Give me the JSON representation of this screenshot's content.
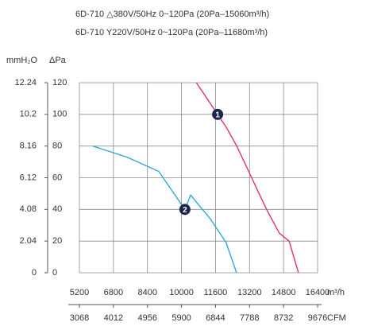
{
  "chart_data": {
    "type": "line",
    "subtitle_lines": [
      "6D-710  △380V/50Hz  0~120Pa  (20Pa–15060m³/h)",
      "6D-710  Y220V/50Hz  0~120Pa  (20Pa–11680m³/h)"
    ],
    "y_label": "ΔPa",
    "y2_label": "mmH₂O",
    "x_label": "m³/h",
    "x2_label": "CFM",
    "xlim": [
      5200,
      16400
    ],
    "xticks": [
      5200,
      6800,
      8400,
      10000,
      11600,
      13200,
      14800,
      16400
    ],
    "x2lim": [
      3068,
      9676
    ],
    "x2ticks": [
      3068,
      4012,
      4956,
      5900,
      6844,
      7788,
      8732,
      9676
    ],
    "ylim": [
      0,
      120
    ],
    "yticks": [
      0,
      20,
      40,
      60,
      80,
      100,
      120
    ],
    "y2lim": [
      0,
      12.24
    ],
    "y2ticks": [
      0,
      2.04,
      4.08,
      6.12,
      8.16,
      10.2,
      12.24
    ],
    "grid": true,
    "series": [
      {
        "name": "1",
        "color": "#e0336a",
        "x": [
          10700,
          11300,
          11700,
          12100,
          12600,
          13300,
          14000,
          14600,
          15060,
          15500
        ],
        "values": [
          120,
          108,
          100,
          92,
          80,
          60,
          40,
          25,
          20,
          0
        ]
      },
      {
        "name": "2",
        "color": "#2aaad6",
        "x": [
          5830,
          7440,
          8930,
          10160,
          10430,
          11360,
          12100,
          12590
        ],
        "values": [
          80,
          73,
          64,
          40,
          49,
          34,
          19,
          0
        ]
      }
    ]
  }
}
